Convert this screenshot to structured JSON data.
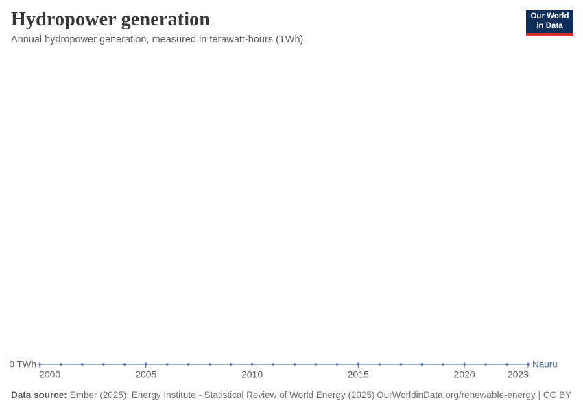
{
  "header": {
    "title": "Hydropower generation",
    "subtitle": "Annual hydropower generation, measured in terawatt-hours (TWh).",
    "logo": {
      "line1": "Our World",
      "line2": "in Data"
    }
  },
  "chart_data": {
    "type": "line",
    "title": "Hydropower generation",
    "subtitle": "Annual hydropower generation, measured in terawatt-hours (TWh).",
    "x": [
      2000,
      2001,
      2002,
      2003,
      2004,
      2005,
      2006,
      2007,
      2008,
      2009,
      2010,
      2011,
      2012,
      2013,
      2014,
      2015,
      2016,
      2017,
      2018,
      2019,
      2020,
      2021,
      2022,
      2023
    ],
    "series": [
      {
        "name": "Nauru",
        "values": [
          0,
          0,
          0,
          0,
          0,
          0,
          0,
          0,
          0,
          0,
          0,
          0,
          0,
          0,
          0,
          0,
          0,
          0,
          0,
          0,
          0,
          0,
          0,
          0
        ]
      }
    ],
    "xlabel": "",
    "ylabel": "",
    "x_ticks": [
      2000,
      2005,
      2010,
      2015,
      2020,
      2023
    ],
    "x_tick_labels": [
      "2000",
      "2005",
      "2010",
      "2015",
      "2020",
      "2023"
    ],
    "y_ticks": [
      {
        "value": 0,
        "label": "0 TWh"
      }
    ],
    "ylim": [
      0,
      1
    ],
    "grid": false,
    "legend_position": "end-of-line"
  },
  "footer": {
    "source_label": "Data source:",
    "source_text": "Ember (2025); Energy Institute - Statistical Review of World Energy (2025)",
    "link_text": "OurWorldinData.org/renewable-energy | CC BY"
  },
  "colors": {
    "series": "#4d6cab",
    "line": "#7a94c4",
    "tick": "#5d77a6",
    "axis_text": "#5e5e5e",
    "title_text": "#373737",
    "logo_bg": "#0d2d5a",
    "logo_accent": "#d63228"
  }
}
